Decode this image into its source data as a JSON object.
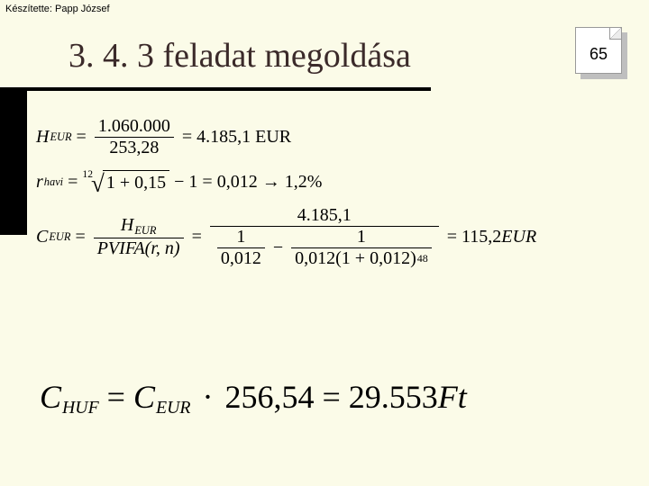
{
  "background_color": "#fbfbe8",
  "credit": "Készítette: Papp József",
  "title": "3. 4. 3 feladat megoldása",
  "page_number": "65",
  "eq1": {
    "lhs_symbol": "H",
    "lhs_sub": "EUR",
    "numerator": "1.060.000",
    "denominator": "253,28",
    "result": "4.185,1 EUR"
  },
  "eq2": {
    "lhs_symbol": "r",
    "lhs_sub": "havi",
    "root_index": "12",
    "radicand": "1 + 0,15",
    "minus_tail": "− 1",
    "result_decimal": "0,012",
    "result_percent": "1,2%"
  },
  "eq3": {
    "lhs_symbol": "C",
    "lhs_sub": "EUR",
    "mid_num_sym": "H",
    "mid_num_sub": "EUR",
    "mid_den": "PVIFA(r, n)",
    "big_numerator": "4.185,1",
    "inner_left_num": "1",
    "inner_left_den": "0,012",
    "inner_right_num": "1",
    "inner_right_den_base": "0,012(1 + 0,012)",
    "inner_right_exp": "48",
    "result": "115,2",
    "result_unit": "EUR"
  },
  "eq4": {
    "lhs_symbol": "C",
    "lhs_sub": "HUF",
    "rhs_symbol": "C",
    "rhs_sub": "EUR",
    "multiplier": "256,54",
    "result": "29.553",
    "unit": "Ft"
  }
}
